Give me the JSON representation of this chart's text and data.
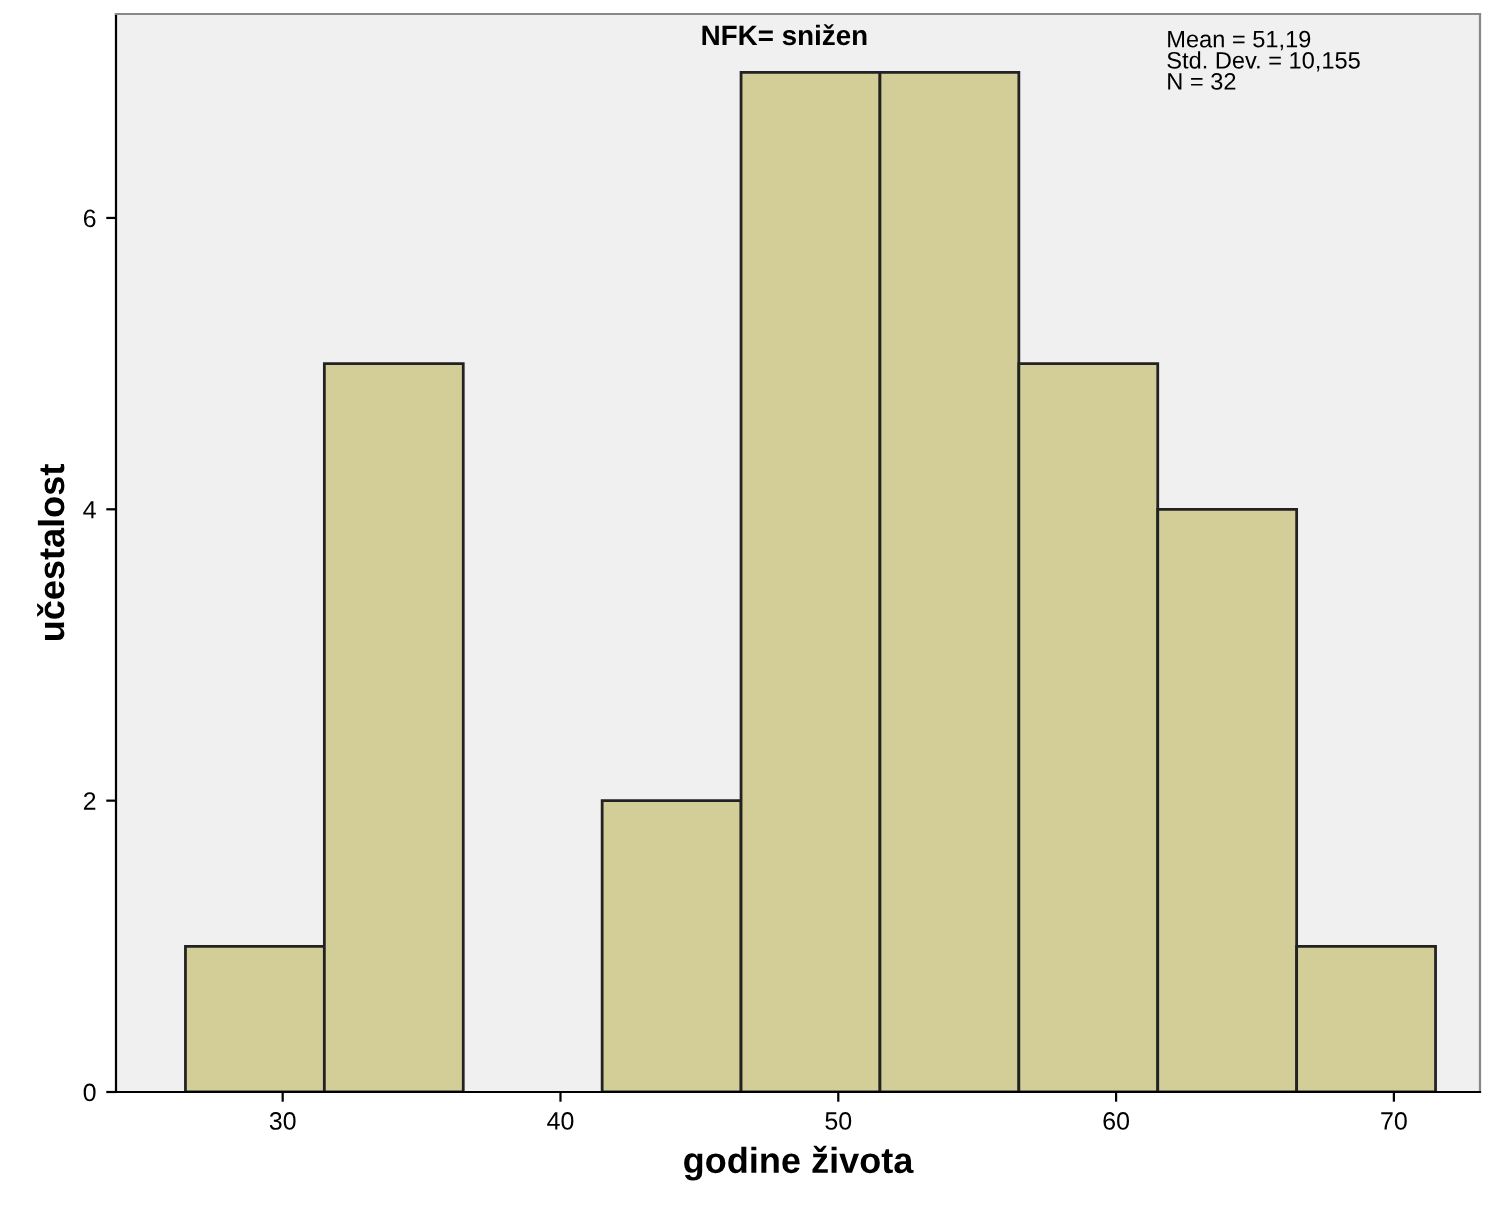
{
  "chart_data": {
    "type": "histogram",
    "title": "NFK= snižen",
    "xlabel": "godine života",
    "ylabel": "učestalost",
    "bins": [
      26.5,
      31.5,
      36.5,
      41.5,
      46.5,
      51.5,
      56.5,
      61.5,
      66.5,
      71.5
    ],
    "values": [
      1,
      5,
      0,
      2,
      7,
      7,
      5,
      4,
      1
    ],
    "color": "#d3ce97",
    "xlim": [
      24,
      73.1
    ],
    "xticks": [
      30,
      40,
      50,
      60,
      70
    ],
    "ylim": [
      0,
      7.4
    ],
    "yticks": [
      0,
      2,
      4,
      6
    ],
    "grid": false,
    "legend": false,
    "annotations": [
      "Mean = 51,19\nStd. Dev. = 10,155\nN = 32"
    ]
  }
}
